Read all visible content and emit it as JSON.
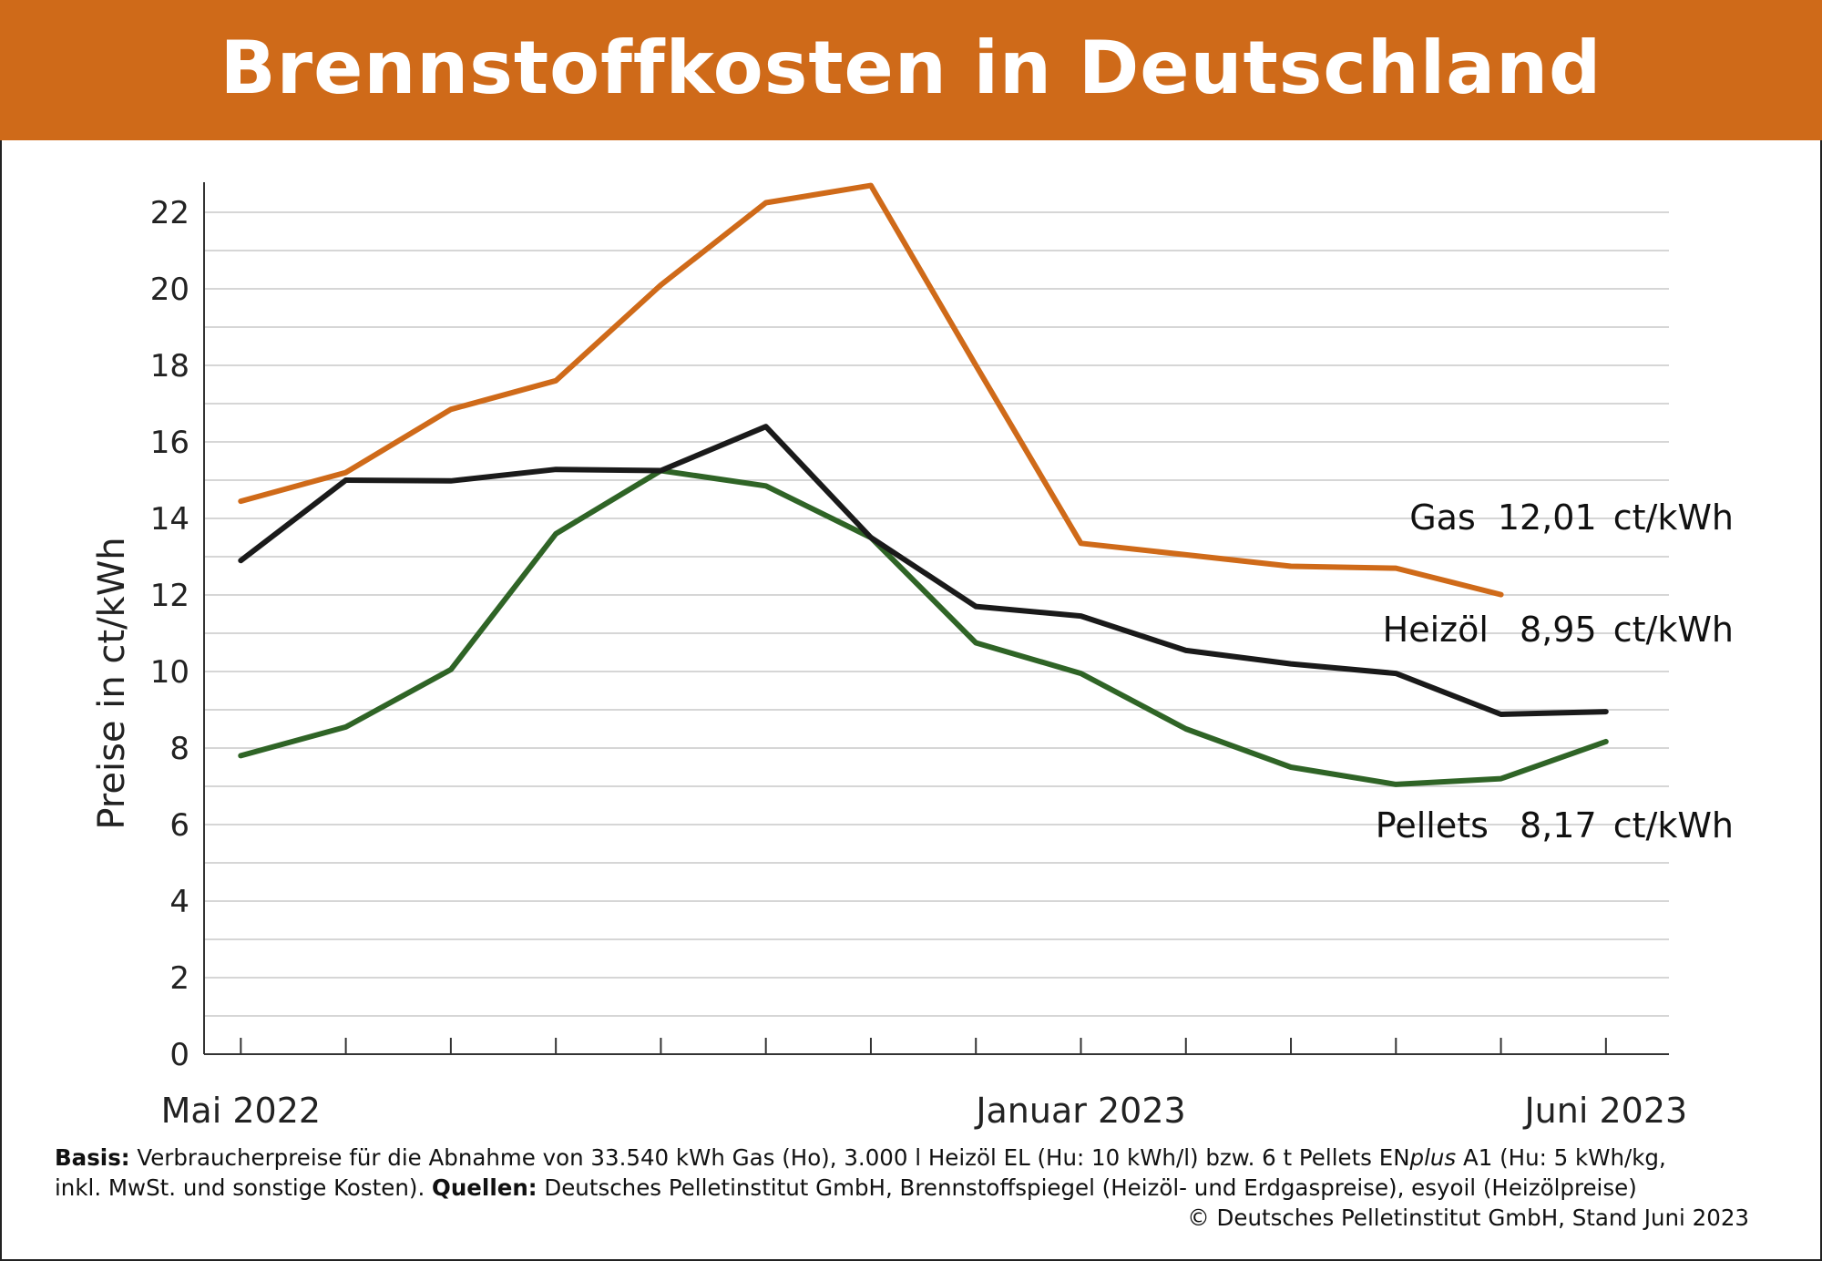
{
  "title": "Brennstoffkosten in Deutschland",
  "colors": {
    "header": "#cf6a19",
    "gas": "#cf6a19",
    "heizoel": "#1a1a1a",
    "pellets": "#2f6426"
  },
  "chart_data": {
    "type": "line",
    "ylabel": "Preise in ct/kWh",
    "xlabel": "",
    "ylim": [
      0,
      22.7
    ],
    "yticks": [
      0,
      2,
      4,
      6,
      8,
      10,
      12,
      14,
      16,
      18,
      20,
      22
    ],
    "y_gridlines": [
      1,
      3,
      5,
      7,
      9,
      11,
      13,
      15,
      17,
      19,
      21,
      23,
      0,
      2,
      4,
      6,
      8,
      10,
      12,
      14,
      16,
      18,
      20,
      22
    ],
    "grid": true,
    "x": [
      1,
      2,
      3,
      4,
      5,
      6,
      7,
      8,
      9,
      10,
      11,
      12,
      13,
      14
    ],
    "xlim": [
      0.65,
      14.6
    ],
    "x_tick_labels": [
      {
        "x": 1,
        "label": "Mai 2022"
      },
      {
        "x": 9,
        "label": "Januar 2023"
      },
      {
        "x": 14,
        "label": "Juni 2023"
      }
    ],
    "series": [
      {
        "key": "gas",
        "values": [
          14.45,
          15.2,
          16.85,
          17.6,
          20.1,
          22.25,
          22.7,
          18.0,
          13.35,
          13.05,
          12.75,
          12.7,
          12.01,
          null
        ]
      },
      {
        "key": "heizoel",
        "values": [
          12.9,
          15.0,
          14.98,
          15.28,
          15.25,
          16.4,
          13.5,
          11.7,
          11.45,
          10.55,
          10.2,
          9.95,
          8.88,
          8.95
        ]
      },
      {
        "key": "pellets",
        "values": [
          7.8,
          8.55,
          10.05,
          13.6,
          15.25,
          14.85,
          13.5,
          10.75,
          9.95,
          8.5,
          7.5,
          7.05,
          7.2,
          8.17
        ]
      }
    ],
    "labels": [
      {
        "series": "gas",
        "name": "Gas",
        "value": "12,01",
        "unit": "ct/kWh"
      },
      {
        "series": "heizoel",
        "name": "Heizöl",
        "value": "8,95",
        "unit": "ct/kWh"
      },
      {
        "series": "pellets",
        "name": "Pellets",
        "value": "8,17",
        "unit": "ct/kWh"
      }
    ]
  },
  "footer": {
    "basis_label": "Basis:",
    "basis_text": " Verbraucherpreise für die Abnahme von 33.540 kWh Gas (Ho), 3.000 l Heizöl EL (Hu: 10 kWh/l) bzw. 6 t Pellets EN",
    "basis_italic": "plus",
    "basis_text2": " A1 (Hu: 5 kWh/kg,",
    "line2_text": "inkl. MwSt. und sonstige Kosten). ",
    "sources_label": "Quellen:",
    "sources_text": " Deutsches Pelletinstitut GmbH, Brennstoffspiegel (Heizöl- und Erdgaspreise), esyoil (Heizölpreise)",
    "copyright": "© Deutsches Pelletinstitut GmbH, Stand Juni 2023"
  }
}
